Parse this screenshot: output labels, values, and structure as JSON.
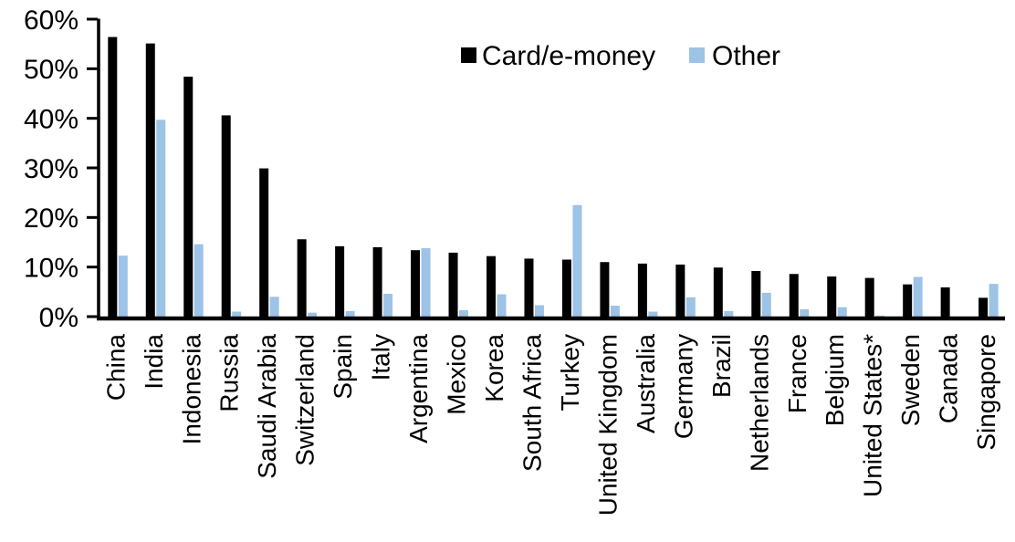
{
  "chart_data": {
    "type": "bar",
    "title": "",
    "xlabel": "",
    "ylabel": "",
    "ylim": [
      0,
      60
    ],
    "ytick_step": 10,
    "ytick_labels": [
      "0%",
      "10%",
      "20%",
      "30%",
      "40%",
      "50%",
      "60%"
    ],
    "grid": false,
    "legend_position": "top-center",
    "categories": [
      "China",
      "India",
      "Indonesia",
      "Russia",
      "Saudi Arabia",
      "Switzerland",
      "Spain",
      "Italy",
      "Argentina",
      "Mexico",
      "Korea",
      "South Africa",
      "Turkey",
      "United Kingdom",
      "Australia",
      "Germany",
      "Brazil",
      "Netherlands",
      "France",
      "Belgium",
      "United States*",
      "Sweden",
      "Canada",
      "Singapore"
    ],
    "series": [
      {
        "name": "Card/e-money",
        "color": "#000000",
        "values": [
          56.4,
          55.1,
          48.4,
          40.6,
          29.9,
          15.6,
          14.2,
          14.0,
          13.4,
          12.9,
          12.2,
          11.7,
          11.5,
          11.0,
          10.7,
          10.5,
          9.9,
          9.2,
          8.6,
          8.1,
          7.8,
          6.5,
          5.9,
          3.8
        ]
      },
      {
        "name": "Other",
        "color": "#9DC3E6",
        "values": [
          12.3,
          39.7,
          14.6,
          1.0,
          4.0,
          0.8,
          1.1,
          4.6,
          13.8,
          1.3,
          4.5,
          2.3,
          22.5,
          2.2,
          1.0,
          3.9,
          1.1,
          4.8,
          1.5,
          1.9,
          0.2,
          8.0,
          0.0,
          6.6
        ]
      }
    ],
    "axis_color": "#000000"
  }
}
